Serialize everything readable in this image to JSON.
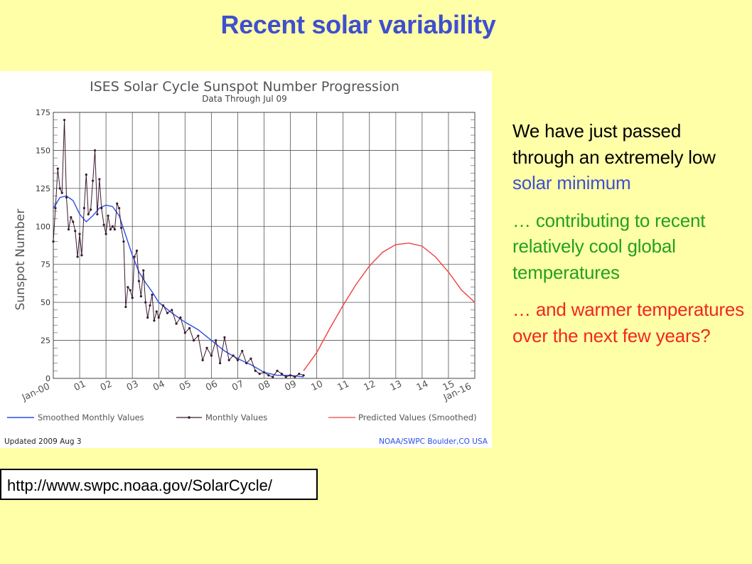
{
  "slide": {
    "title": "Recent solar variability",
    "bullet1_a": "We have just passed through an extremely low ",
    "bullet1_b": "solar minimum",
    "bullet2": "… contributing to recent relatively cool global temperatures",
    "bullet3": "… and warmer temperatures over the next few years?",
    "url": "http://www.swpc.noaa.gov/SolarCycle/",
    "colors": {
      "title": "#3f4fcf",
      "green": "#23a020",
      "red": "#f0281e",
      "background": "#ffffa8"
    }
  },
  "chart_data": {
    "type": "line",
    "title": "ISES Solar Cycle Sunspot Number Progression",
    "subtitle": "Data Through Jul 09",
    "ylabel": "Sunspot Number",
    "xlabel": "",
    "ylim": [
      0,
      175
    ],
    "xlim": [
      2000,
      2016
    ],
    "grid": true,
    "y_ticks": [
      0,
      25,
      50,
      75,
      100,
      125,
      150,
      175
    ],
    "x_ticks": [
      {
        "x": 2000,
        "label": "Jan-00"
      },
      {
        "x": 2001,
        "label": "01"
      },
      {
        "x": 2002,
        "label": "02"
      },
      {
        "x": 2003,
        "label": "03"
      },
      {
        "x": 2004,
        "label": "04"
      },
      {
        "x": 2005,
        "label": "05"
      },
      {
        "x": 2006,
        "label": "06"
      },
      {
        "x": 2007,
        "label": "07"
      },
      {
        "x": 2008,
        "label": "08"
      },
      {
        "x": 2009,
        "label": "09"
      },
      {
        "x": 2010,
        "label": "10"
      },
      {
        "x": 2011,
        "label": "11"
      },
      {
        "x": 2012,
        "label": "12"
      },
      {
        "x": 2013,
        "label": "13"
      },
      {
        "x": 2014,
        "label": "14"
      },
      {
        "x": 2015,
        "label": "15"
      },
      {
        "x": 2016,
        "label": "Jan-16"
      }
    ],
    "legend": [
      "Smoothed Monthly Values",
      "Monthly Values",
      "Predicted Values (Smoothed)"
    ],
    "legend_position": "bottom",
    "footer_left": "Updated 2009 Aug  3",
    "footer_right": "NOAA/SWPC Boulder,CO USA",
    "series": [
      {
        "name": "Smoothed Monthly Values",
        "color": "#2a4fe8",
        "x": [
          2000.0,
          2000.25,
          2000.5,
          2000.75,
          2001.0,
          2001.25,
          2001.5,
          2001.75,
          2002.0,
          2002.25,
          2002.5,
          2002.75,
          2003.0,
          2003.25,
          2003.5,
          2003.75,
          2004.0,
          2004.5,
          2005.0,
          2005.5,
          2006.0,
          2006.5,
          2007.0,
          2007.5,
          2008.0,
          2008.5,
          2009.0,
          2009.5
        ],
        "y": [
          112,
          119,
          120,
          117,
          108,
          103,
          107,
          112,
          114,
          113,
          107,
          94,
          81,
          70,
          63,
          57,
          50,
          43,
          37,
          32,
          25,
          18,
          13,
          9,
          4,
          2,
          2,
          1
        ]
      },
      {
        "name": "Monthly Values",
        "color": "#3a1a30",
        "x": [
          2000.0,
          2000.08,
          2000.17,
          2000.25,
          2000.33,
          2000.42,
          2000.5,
          2000.58,
          2000.67,
          2000.75,
          2000.83,
          2000.92,
          2001.0,
          2001.08,
          2001.17,
          2001.25,
          2001.33,
          2001.42,
          2001.5,
          2001.58,
          2001.67,
          2001.75,
          2001.83,
          2001.92,
          2002.0,
          2002.08,
          2002.17,
          2002.25,
          2002.33,
          2002.42,
          2002.5,
          2002.58,
          2002.67,
          2002.75,
          2002.83,
          2002.92,
          2003.0,
          2003.08,
          2003.17,
          2003.25,
          2003.33,
          2003.42,
          2003.5,
          2003.58,
          2003.67,
          2003.75,
          2003.83,
          2003.92,
          2004.0,
          2004.17,
          2004.33,
          2004.5,
          2004.67,
          2004.83,
          2005.0,
          2005.17,
          2005.33,
          2005.5,
          2005.67,
          2005.83,
          2006.0,
          2006.17,
          2006.33,
          2006.5,
          2006.67,
          2006.83,
          2007.0,
          2007.17,
          2007.33,
          2007.5,
          2007.67,
          2007.83,
          2008.0,
          2008.17,
          2008.33,
          2008.5,
          2008.67,
          2008.83,
          2009.0,
          2009.17,
          2009.33,
          2009.5
        ],
        "y": [
          90,
          112,
          138,
          125,
          122,
          170,
          119,
          98,
          106,
          103,
          97,
          80,
          95,
          81,
          112,
          134,
          108,
          111,
          130,
          150,
          108,
          131,
          112,
          101,
          95,
          107,
          98,
          100,
          98,
          115,
          112,
          99,
          90,
          47,
          60,
          58,
          53,
          80,
          84,
          64,
          54,
          71,
          50,
          40,
          48,
          55,
          38,
          44,
          40,
          48,
          43,
          45,
          36,
          40,
          30,
          33,
          25,
          28,
          12,
          20,
          15,
          25,
          10,
          27,
          12,
          15,
          12,
          18,
          10,
          13,
          5,
          3,
          4,
          2,
          1,
          5,
          3,
          1,
          2,
          1,
          3,
          2
        ]
      },
      {
        "name": "Predicted Values (Smoothed)",
        "color": "#f04040",
        "x": [
          2009.5,
          2010.0,
          2010.5,
          2011.0,
          2011.5,
          2012.0,
          2012.5,
          2013.0,
          2013.5,
          2014.0,
          2014.5,
          2015.0,
          2015.5,
          2016.0
        ],
        "y": [
          5,
          17,
          33,
          48,
          62,
          74,
          83,
          88,
          89,
          87,
          80,
          70,
          58,
          50
        ]
      }
    ]
  }
}
